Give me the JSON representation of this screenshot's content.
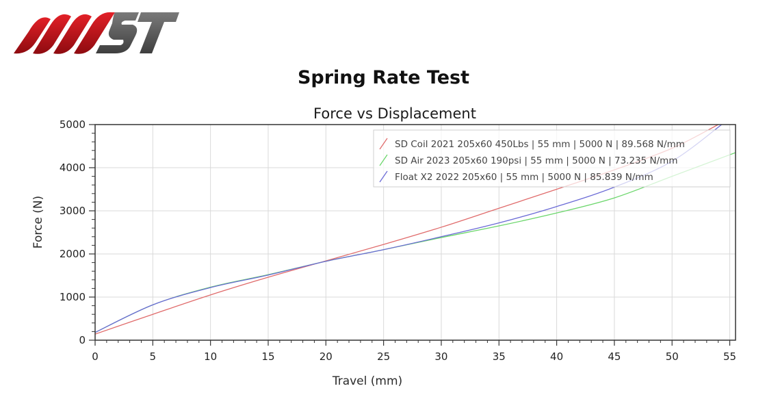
{
  "brand": {
    "logo_text": "MST",
    "colors": {
      "red": "#d4141a",
      "dark_red": "#8e0b10",
      "gray": "#5e5e5e"
    }
  },
  "page": {
    "title": "Spring Rate Test"
  },
  "chart_data": {
    "type": "line",
    "title": "Force vs Displacement",
    "xlabel": "Travel (mm)",
    "ylabel": "Force (N)",
    "xlim": [
      0,
      55.5
    ],
    "ylim": [
      0,
      5000
    ],
    "x_ticks": [
      0,
      5,
      10,
      15,
      20,
      25,
      30,
      35,
      40,
      45,
      50,
      55
    ],
    "y_ticks": [
      0,
      1000,
      2000,
      3000,
      4000,
      5000
    ],
    "grid": true,
    "legend_position": "top-right",
    "series": [
      {
        "name": "SD Coil 2021 205x60 450Lbs | 55 mm | 5000 N | 89.568 N/mm",
        "color": "#e06b6b",
        "x": [
          0,
          5,
          10,
          15,
          20,
          25,
          30,
          35,
          40,
          45,
          50,
          54
        ],
        "y": [
          140,
          600,
          1050,
          1460,
          1840,
          2220,
          2620,
          3060,
          3500,
          3950,
          4450,
          5000
        ]
      },
      {
        "name": "SD Air 2023 205x60 190psi | 55 mm | 5000 N | 73.235 N/mm",
        "color": "#6ad66a",
        "x": [
          0,
          5,
          10,
          15,
          20,
          25,
          30,
          35,
          40,
          45,
          50,
          55.5
        ],
        "y": [
          180,
          820,
          1230,
          1520,
          1830,
          2100,
          2380,
          2650,
          2950,
          3300,
          3800,
          4350
        ]
      },
      {
        "name": "Float X2 2022 205x60 | 55 mm | 5000 N | 85.839 N/mm",
        "color": "#6a6ad6",
        "x": [
          0,
          5,
          10,
          15,
          20,
          25,
          30,
          35,
          40,
          45,
          50,
          54.3
        ],
        "y": [
          180,
          820,
          1220,
          1510,
          1830,
          2100,
          2400,
          2720,
          3100,
          3550,
          4150,
          5000
        ]
      }
    ]
  }
}
